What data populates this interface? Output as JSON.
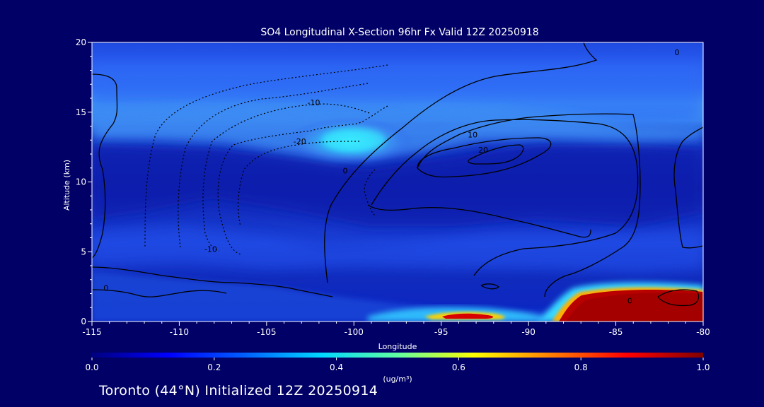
{
  "chart_data": {
    "type": "heatmap",
    "title": "SO4 Longitudinal X-Section 96hr  Fx Valid 12Z 20250918",
    "xlabel": "Longitude",
    "ylabel": "Altitude (km)",
    "xlim": [
      -115,
      -80
    ],
    "ylim": [
      0,
      20
    ],
    "x_ticks": [
      -115,
      -110,
      -105,
      -100,
      -95,
      -90,
      -85,
      -80
    ],
    "y_ticks": [
      0,
      5,
      10,
      15,
      20
    ],
    "contour_labels": [
      {
        "text": "-10",
        "x": -102.3,
        "y": 15.7
      },
      {
        "text": "-20",
        "x": -103.1,
        "y": 12.9
      },
      {
        "text": "-10",
        "x": -108.2,
        "y": 5.2
      },
      {
        "text": "10",
        "x": -93.2,
        "y": 13.4
      },
      {
        "text": "20",
        "x": -92.6,
        "y": 12.3
      },
      {
        "text": "0",
        "x": -100.5,
        "y": 10.8
      },
      {
        "text": "0",
        "x": -84.2,
        "y": 1.5
      },
      {
        "text": "0",
        "x": -114.2,
        "y": 2.4
      },
      {
        "text": "0",
        "x": -81.5,
        "y": 19.3
      }
    ],
    "colorbar": {
      "ticks": [
        0.0,
        0.2,
        0.4,
        0.6,
        0.8,
        1.0
      ],
      "tick_labels": [
        "0.0",
        "0.2",
        "0.4",
        "0.6",
        "0.8",
        "1.0"
      ],
      "unit_label": "(ug/m³)",
      "range": [
        0,
        1
      ]
    },
    "field_features": [
      {
        "name": "stratospheric layer",
        "lon_range": [
          -115,
          -80
        ],
        "alt_range": [
          13,
          16
        ],
        "value": 0.25
      },
      {
        "name": "tropopause maximum",
        "lon_range": [
          -103,
          -97
        ],
        "alt_range": [
          11.5,
          13.5
        ],
        "value": 0.42
      },
      {
        "name": "boundary layer plume east",
        "lon_range": [
          -89,
          -80
        ],
        "alt_range": [
          0.3,
          2.3
        ],
        "value": 1.0
      },
      {
        "name": "boundary layer plume west",
        "lon_range": [
          -95,
          -92
        ],
        "alt_range": [
          0.2,
          0.6
        ],
        "value": 0.9
      }
    ]
  },
  "footer": "Toronto (44°N) Initialized 12Z 20250914",
  "colors": {
    "background": "#000066",
    "text": "#ffffff",
    "contours": "#000000"
  }
}
